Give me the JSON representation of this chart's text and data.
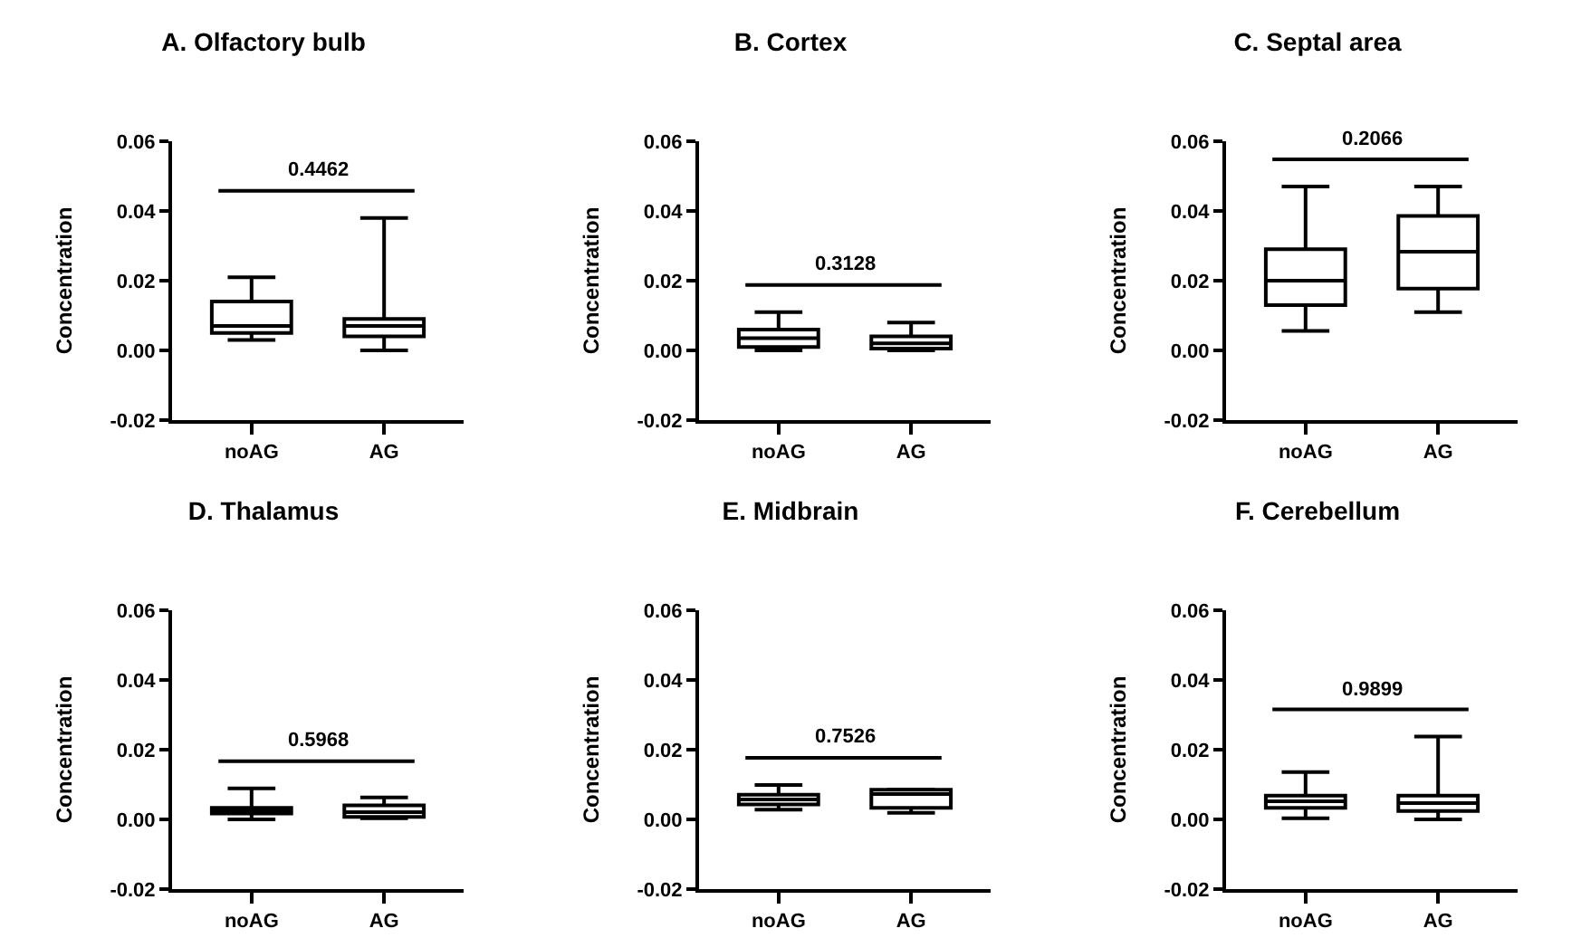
{
  "chart_data": [
    {
      "type": "box",
      "title": "A. Olfactory bulb",
      "ylabel": "Concentration",
      "categories": [
        "noAG",
        "AG"
      ],
      "ylim": [
        -0.02,
        0.06
      ],
      "yticks": [
        {
          "value": -0.02,
          "label": "-0.02"
        },
        {
          "value": 0,
          "label": "0.00"
        },
        {
          "value": 0.02,
          "label": "0.02"
        },
        {
          "value": 0.04,
          "label": "0.04"
        },
        {
          "value": 0.06,
          "label": "0.06"
        }
      ],
      "grid": false,
      "annotations": [
        "0.4462"
      ],
      "boxes": [
        {
          "low": 0.003,
          "q1": 0.005,
          "median": 0.007,
          "q3": 0.014,
          "high": 0.021
        },
        {
          "low": 0.0,
          "q1": 0.004,
          "median": 0.007,
          "q3": 0.009,
          "high": 0.038
        }
      ]
    },
    {
      "type": "box",
      "title": "B. Cortex",
      "ylabel": "Concentration",
      "categories": [
        "noAG",
        "AG"
      ],
      "ylim": [
        -0.02,
        0.06
      ],
      "yticks": [
        {
          "value": -0.02,
          "label": "-0.02"
        },
        {
          "value": 0,
          "label": "0.00"
        },
        {
          "value": 0.02,
          "label": "0.02"
        },
        {
          "value": 0.04,
          "label": "0.04"
        },
        {
          "value": 0.06,
          "label": "0.06"
        }
      ],
      "grid": false,
      "annotations": [
        "0.3128"
      ],
      "boxes": [
        {
          "low": 0.0,
          "q1": 0.001,
          "median": 0.0035,
          "q3": 0.006,
          "high": 0.011
        },
        {
          "low": 0.0,
          "q1": 0.0005,
          "median": 0.002,
          "q3": 0.004,
          "high": 0.008
        }
      ]
    },
    {
      "type": "box",
      "title": "C. Septal area",
      "ylabel": "Concentration",
      "categories": [
        "noAG",
        "AG"
      ],
      "ylim": [
        -0.02,
        0.06
      ],
      "yticks": [
        {
          "value": -0.02,
          "label": "-0.02"
        },
        {
          "value": 0,
          "label": "0.00"
        },
        {
          "value": 0.02,
          "label": "0.02"
        },
        {
          "value": 0.04,
          "label": "0.04"
        },
        {
          "value": 0.06,
          "label": "0.06"
        }
      ],
      "grid": false,
      "annotations": [
        "0.2066"
      ],
      "boxes": [
        {
          "low": 0.0056,
          "q1": 0.013,
          "median": 0.02,
          "q3": 0.029,
          "high": 0.047
        },
        {
          "low": 0.011,
          "q1": 0.0177,
          "median": 0.0283,
          "q3": 0.0386,
          "high": 0.047
        }
      ]
    },
    {
      "type": "box",
      "title": "D. Thalamus",
      "ylabel": "Concentration",
      "categories": [
        "noAG",
        "AG"
      ],
      "ylim": [
        -0.02,
        0.06
      ],
      "yticks": [
        {
          "value": -0.02,
          "label": "-0.02"
        },
        {
          "value": 0,
          "label": "0.00"
        },
        {
          "value": 0.02,
          "label": "0.02"
        },
        {
          "value": 0.04,
          "label": "0.04"
        },
        {
          "value": 0.06,
          "label": "0.06"
        }
      ],
      "grid": false,
      "annotations": [
        "0.5968"
      ],
      "boxes": [
        {
          "low": 0.0,
          "q1": 0.0017,
          "median": 0.0024,
          "q3": 0.0033,
          "high": 0.0089
        },
        {
          "low": 0.0003,
          "q1": 0.0007,
          "median": 0.0021,
          "q3": 0.004,
          "high": 0.0063
        }
      ]
    },
    {
      "type": "box",
      "title": "E. Midbrain",
      "ylabel": "Concentration",
      "categories": [
        "noAG",
        "AG"
      ],
      "ylim": [
        -0.02,
        0.06
      ],
      "yticks": [
        {
          "value": -0.02,
          "label": "-0.02"
        },
        {
          "value": 0,
          "label": "0.00"
        },
        {
          "value": 0.02,
          "label": "0.02"
        },
        {
          "value": 0.04,
          "label": "0.04"
        },
        {
          "value": 0.06,
          "label": "0.06"
        }
      ],
      "grid": false,
      "annotations": [
        "0.7526"
      ],
      "boxes": [
        {
          "low": 0.0028,
          "q1": 0.0043,
          "median": 0.0057,
          "q3": 0.0071,
          "high": 0.0099
        },
        {
          "low": 0.0019,
          "q1": 0.0033,
          "median": 0.0073,
          "q3": 0.0085,
          "high": 0.0086
        }
      ]
    },
    {
      "type": "box",
      "title": "F. Cerebellum",
      "ylabel": "Concentration",
      "categories": [
        "noAG",
        "AG"
      ],
      "ylim": [
        -0.02,
        0.06
      ],
      "yticks": [
        {
          "value": -0.02,
          "label": "-0.02"
        },
        {
          "value": 0,
          "label": "0.00"
        },
        {
          "value": 0.02,
          "label": "0.02"
        },
        {
          "value": 0.04,
          "label": "0.04"
        },
        {
          "value": 0.06,
          "label": "0.06"
        }
      ],
      "grid": false,
      "annotations": [
        "0.9899"
      ],
      "boxes": [
        {
          "low": 0.0003,
          "q1": 0.0033,
          "median": 0.0052,
          "q3": 0.0068,
          "high": 0.0136
        },
        {
          "low": 0.0,
          "q1": 0.0024,
          "median": 0.0047,
          "q3": 0.0068,
          "high": 0.0238
        }
      ]
    }
  ]
}
